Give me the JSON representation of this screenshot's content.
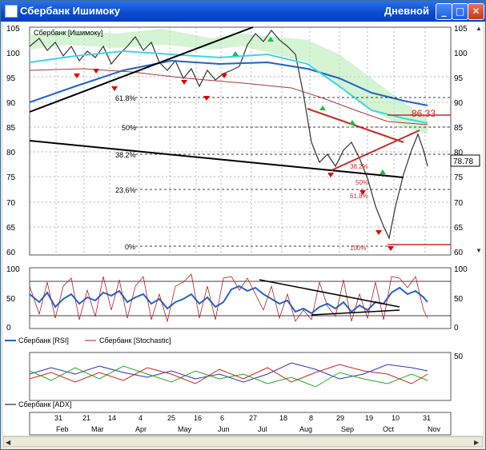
{
  "window": {
    "title": "Сбербанк Ишимоку",
    "mode": "Дневной",
    "minimize_label": "_",
    "maximize_label": "□",
    "close_label": "✕"
  },
  "price_panel": {
    "symbol_label": "Сбербанк [Ишимоку]",
    "y_ticks": [
      "105",
      "100",
      "95",
      "90",
      "85",
      "80",
      "75",
      "70",
      "65",
      "60"
    ],
    "fib_labels": [
      "61.8%",
      "50%",
      "38.2%",
      "23.6%",
      "0%"
    ],
    "fib_labels_right": [
      "38.2%",
      "50%",
      "61.8%",
      "100%"
    ],
    "target_label": "86.33",
    "last_price": "78.78"
  },
  "rsi_panel": {
    "y_ticks": [
      "100",
      "50",
      "0"
    ],
    "legend": [
      "Сбербанк [RSI]",
      "Сбербанк [Stochastic]"
    ],
    "colors": {
      "rsi": "#1f64c8",
      "stochastic": "#b22222"
    }
  },
  "adx_panel": {
    "y_ticks": [
      "50"
    ],
    "legend": [
      "Сбербанк [ADX]"
    ]
  },
  "time_axis": {
    "days": [
      "31",
      "21",
      "14",
      "4",
      "25",
      "16",
      "6",
      "27",
      "18",
      "8",
      "29",
      "19",
      "10",
      "31"
    ],
    "months": [
      "Feb",
      "Mar",
      "Apr",
      "May",
      "Jun",
      "Jul",
      "Aug",
      "Sep",
      "Oct",
      "Nov"
    ]
  },
  "colors": {
    "titlebar": "#0a4ad3",
    "cloud": "#7fd67f",
    "kijun": "#00b050",
    "ma_blue": "#1f64c8",
    "ma_cyan": "#3fd5e0",
    "trend_red": "#cc2a2a",
    "signal_down": "#e00000",
    "signal_up": "#19c040"
  }
}
